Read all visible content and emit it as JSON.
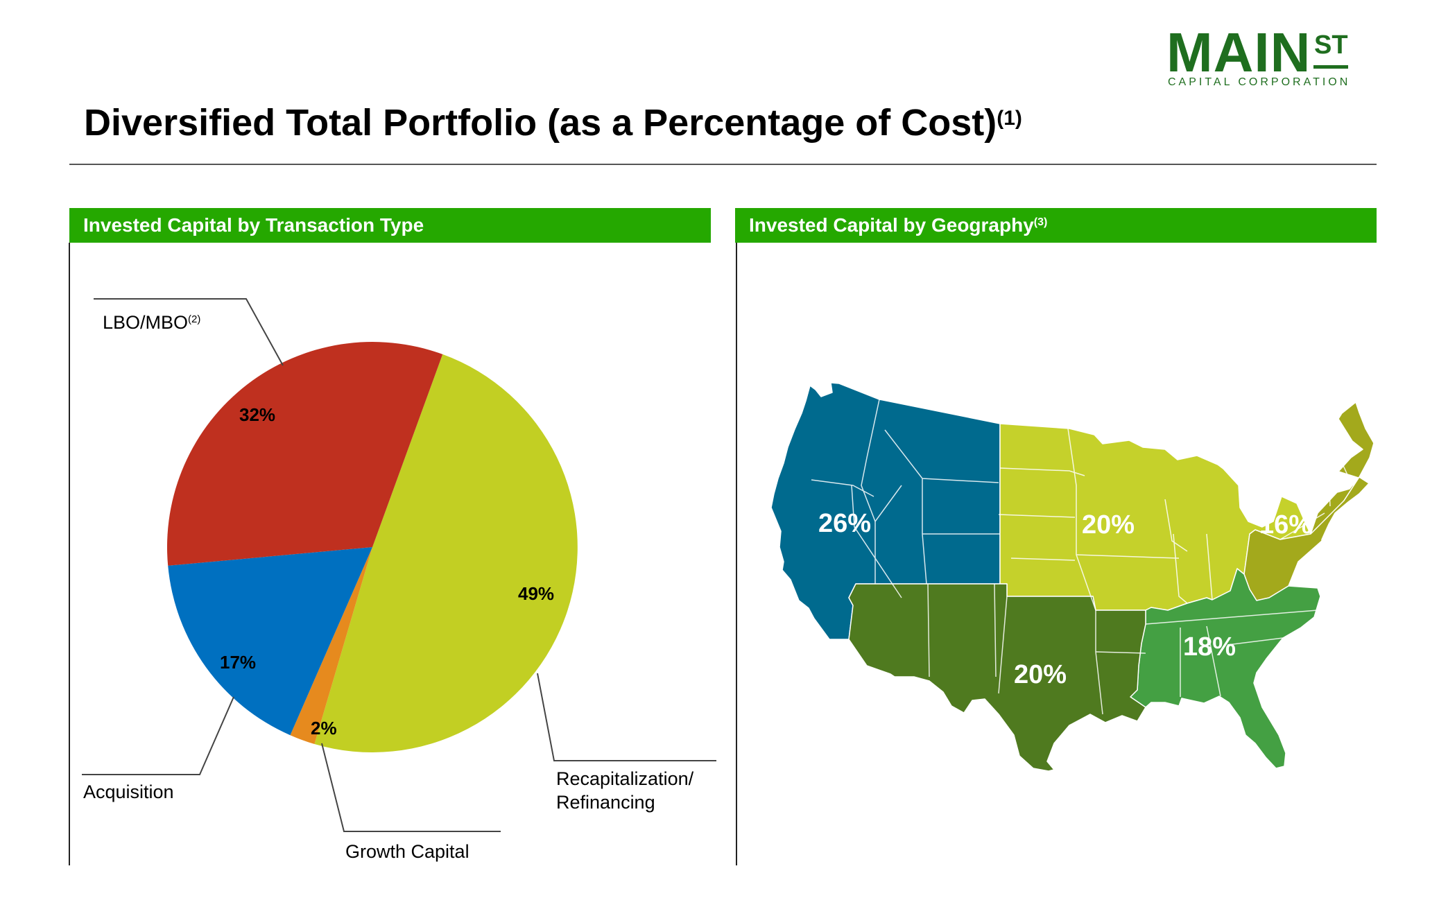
{
  "logo": {
    "main": "MAIN",
    "st": "ST",
    "sub": "CAPITAL CORPORATION"
  },
  "title": {
    "text": "Diversified Total Portfolio (as a Percentage of Cost)",
    "note": "(1)"
  },
  "left_panel": {
    "header": "Invested Capital by Transaction Type"
  },
  "right_panel": {
    "header": "Invested Capital by Geography",
    "note": "(3)"
  },
  "chart_data": [
    {
      "type": "pie",
      "title": "Invested Capital by Transaction Type",
      "slices": [
        {
          "name": "Recapitalization/ Refinancing",
          "line1": "Recapitalization/",
          "line2": "Refinancing",
          "value": 49,
          "label": "49%",
          "color": "#c2cf23"
        },
        {
          "name": "Growth Capital",
          "value": 2,
          "label": "2%",
          "color": "#e68a1e"
        },
        {
          "name": "Acquisition",
          "value": 17,
          "label": "17%",
          "color": "#0070c0"
        },
        {
          "name": "LBO/MBO",
          "note": "(2)",
          "value": 32,
          "label": "32%",
          "color": "#bf301f"
        }
      ]
    },
    {
      "type": "map",
      "title": "Invested Capital by Geography",
      "regions": [
        {
          "name": "West",
          "value": 26,
          "label": "26%",
          "color": "#006a8e"
        },
        {
          "name": "Midwest",
          "value": 20,
          "label": "20%",
          "color": "#c5d12b"
        },
        {
          "name": "Northeast",
          "value": 16,
          "label": "16%",
          "color": "#a3a91c"
        },
        {
          "name": "Southeast",
          "value": 18,
          "label": "18%",
          "color": "#44a043"
        },
        {
          "name": "Southwest",
          "value": 20,
          "label": "20%",
          "color": "#4f7a1f"
        }
      ]
    }
  ]
}
